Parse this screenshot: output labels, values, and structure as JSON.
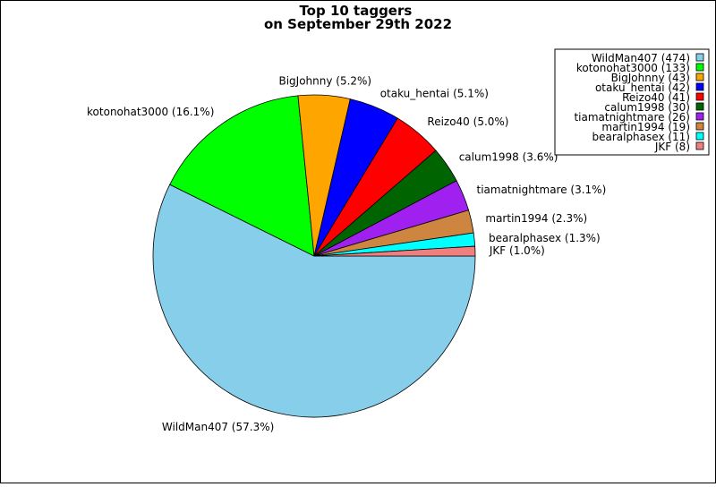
{
  "chart_data": {
    "type": "pie",
    "title": "Top 10 taggers\non September 29th 2022",
    "start_angle_deg": 0,
    "direction": "clockwise",
    "legend_position": "top-right",
    "slices": [
      {
        "name": "WildMan407",
        "count": 474,
        "percent": 57.3,
        "color": "#87ceeb"
      },
      {
        "name": "kotonohat3000",
        "count": 133,
        "percent": 16.1,
        "color": "#00ff00"
      },
      {
        "name": "BigJohnny",
        "count": 43,
        "percent": 5.2,
        "color": "#ffa500"
      },
      {
        "name": "otaku_hentai",
        "count": 42,
        "percent": 5.1,
        "color": "#0000ff"
      },
      {
        "name": "Reizo40",
        "count": 41,
        "percent": 5.0,
        "color": "#ff0000"
      },
      {
        "name": "calum1998",
        "count": 30,
        "percent": 3.6,
        "color": "#006400"
      },
      {
        "name": "tiamatnightmare",
        "count": 26,
        "percent": 3.1,
        "color": "#a020f0"
      },
      {
        "name": "martin1994",
        "count": 19,
        "percent": 2.3,
        "color": "#cd853f"
      },
      {
        "name": "bearalphasex",
        "count": 11,
        "percent": 1.3,
        "color": "#00ffff"
      },
      {
        "name": "JKF",
        "count": 8,
        "percent": 1.0,
        "color": "#f08080"
      }
    ]
  }
}
